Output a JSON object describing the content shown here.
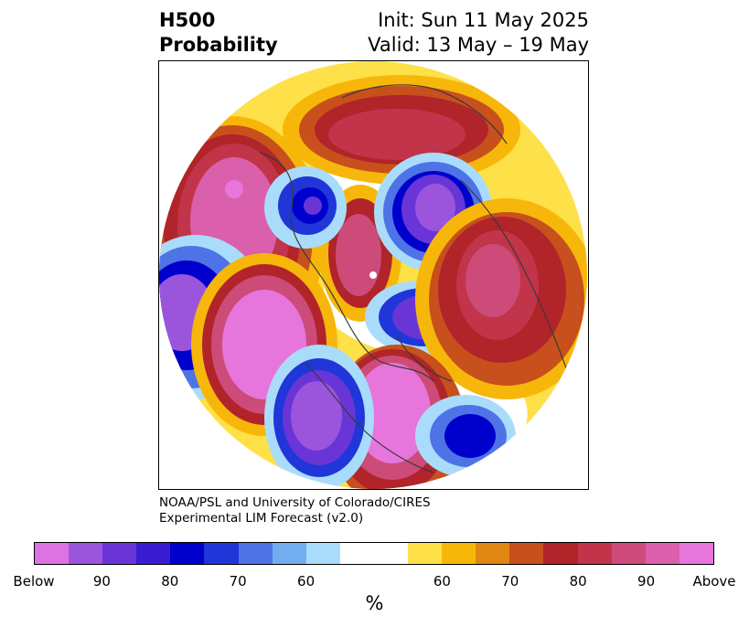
{
  "header": {
    "title_line1": "H500",
    "title_line2": "Probability",
    "init_line": "Init: Sun 11 May 2025",
    "valid_line": "Valid: 13 May – 19 May"
  },
  "credit": {
    "line1": "NOAA/PSL and University of Colorado/CIRES",
    "line2": "Experimental LIM Forecast (v2.0)"
  },
  "colorbar": {
    "unit": "%",
    "colors": [
      "#dd73e3",
      "#9b55dd",
      "#6a35d6",
      "#3a1cd0",
      "#0000cc",
      "#2036d8",
      "#4e73e6",
      "#72aeef",
      "#a9dcfb",
      "#ffffff",
      "#ffffff",
      "#fee048",
      "#f7b70a",
      "#df8613",
      "#c7501d",
      "#b0242a",
      "#c1344a",
      "#cd4b78",
      "#db60ab",
      "#e676dc"
    ],
    "tick_labels": [
      "Below",
      "90",
      "80",
      "70",
      "60",
      "60",
      "70",
      "80",
      "90",
      "Above"
    ]
  },
  "map": {
    "projection": "north-polar-stereographic",
    "anomalies": [
      {
        "region": "north-pacific",
        "sign": "above",
        "peak": "above"
      },
      {
        "region": "western-north-america",
        "sign": "above",
        "peak": "90"
      },
      {
        "region": "eastern-north-america",
        "sign": "above",
        "peak": "above"
      },
      {
        "region": "hudson-bay",
        "sign": "below",
        "peak": "90"
      },
      {
        "region": "north-atlantic",
        "sign": "below",
        "peak": "80"
      },
      {
        "region": "scandinavia-urals",
        "sign": "below",
        "peak": "90"
      },
      {
        "region": "siberia-arctic",
        "sign": "above",
        "peak": "80"
      },
      {
        "region": "east-asia",
        "sign": "above",
        "peak": "90"
      },
      {
        "region": "subtropical-pacific",
        "sign": "below",
        "peak": "80"
      }
    ]
  }
}
